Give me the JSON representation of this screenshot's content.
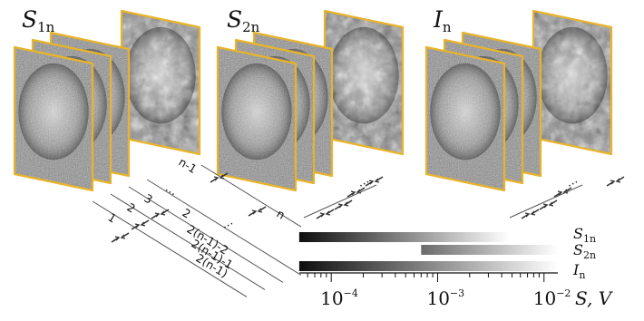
{
  "figure": {
    "groups": [
      {
        "symbol": "S",
        "subscript": "1n"
      },
      {
        "symbol": "S",
        "subscript": "2n"
      },
      {
        "symbol": "I",
        "subscript": "n"
      }
    ],
    "separation_labels": [
      "1",
      "2",
      "3",
      "⋯",
      "n-1",
      "2",
      "2(n-1)-2",
      "2(n-1)-1",
      "2(n-1)",
      "n"
    ],
    "ellipsis": "⋯",
    "colors": {
      "frame": "#e8b42a",
      "arrow": "#333333",
      "line": "#555555",
      "bar": "#111111"
    }
  },
  "range_axis": {
    "ticks": [
      {
        "base": "10",
        "exponent": "−4"
      },
      {
        "base": "10",
        "exponent": "−3"
      },
      {
        "base": "10",
        "exponent": "−2"
      }
    ],
    "axis_label": "S, V",
    "bars": [
      {
        "symbol": "S",
        "subscript": "1n",
        "from": 5e-05,
        "to": 0.0047,
        "gradient": "dark-to-light"
      },
      {
        "symbol": "S",
        "subscript": "2n",
        "from": 0.0007,
        "to": 0.0135,
        "gradient": "dark-to-light"
      },
      {
        "symbol": "I",
        "subscript": "n",
        "from": 5e-05,
        "to": 0.0135,
        "gradient": "dark-to-light"
      }
    ]
  }
}
